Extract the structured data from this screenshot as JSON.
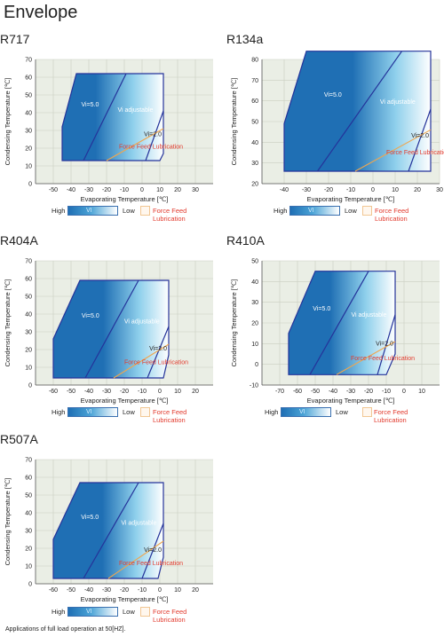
{
  "page": {
    "title": "Envelope",
    "footnote": "Applications of full load operation at 50[HZ]."
  },
  "legend": {
    "high": "High",
    "vi": "VI",
    "low": "Low",
    "ffl": "Force Feed Lubrication"
  },
  "colors": {
    "plot_bg": "#eaeee5",
    "grid": "#c9cfc1",
    "envelope_border": "#24339a",
    "ffl_line": "#f0a64e",
    "label_red": "#e23b2e",
    "vi_dark": "#1f6fb4",
    "vi_light": "#ffffff"
  },
  "chart_data": [
    {
      "type": "area",
      "title": "R717",
      "xlabel": "Evaporating Temperature [℃]",
      "ylabel": "Condensing Temperature [℃]",
      "xlim": [
        -60,
        40
      ],
      "ylim": [
        0,
        70
      ],
      "xticks": [
        -50,
        -40,
        -30,
        -20,
        -10,
        0,
        10,
        20,
        30
      ],
      "yticks": [
        0,
        10,
        20,
        30,
        40,
        50,
        60,
        70
      ],
      "grid": true,
      "envelope": [
        [
          -45,
          13
        ],
        [
          -45,
          32
        ],
        [
          -37,
          62
        ],
        [
          12,
          62
        ],
        [
          12,
          17
        ],
        [
          10,
          13
        ]
      ],
      "vi_line_left": [
        [
          -33,
          13
        ],
        [
          -9,
          62
        ]
      ],
      "vi_line_right": [
        [
          2,
          13
        ],
        [
          12,
          41
        ]
      ],
      "ffl_line": [
        [
          -20,
          13
        ],
        [
          12,
          31
        ]
      ],
      "labels": {
        "vi_fixed": "Vi=5.0",
        "vi_adjustable": "Vi adjustable",
        "vi_low": "Vi=2.0",
        "ffl": "Force Feed Lubrication"
      }
    },
    {
      "type": "area",
      "title": "R134a",
      "xlabel": "Evaporating Temperature [℃]",
      "ylabel": "Condensing Temperature [℃]",
      "xlim": [
        -50,
        30
      ],
      "ylim": [
        20,
        80
      ],
      "xticks": [
        -40,
        -30,
        -20,
        -10,
        0,
        10,
        20,
        30
      ],
      "yticks": [
        20,
        30,
        40,
        50,
        60,
        70,
        80
      ],
      "grid": true,
      "envelope": [
        [
          -40,
          26
        ],
        [
          -40,
          49
        ],
        [
          -30,
          84
        ],
        [
          26,
          84
        ],
        [
          26,
          26
        ]
      ],
      "vi_line_left": [
        [
          -25,
          26
        ],
        [
          13,
          84
        ]
      ],
      "vi_line_right": [
        [
          16,
          26
        ],
        [
          26,
          56
        ]
      ],
      "ffl_line": [
        [
          -8,
          26
        ],
        [
          26,
          46
        ]
      ],
      "labels": {
        "vi_fixed": "Vi=5.0",
        "vi_adjustable": "Vi adjustable",
        "vi_low": "Vi=2.0",
        "ffl": "Force Feed Lubrication"
      }
    },
    {
      "type": "area",
      "title": "R404A",
      "xlabel": "Evaporating Temperature [℃]",
      "ylabel": "Condensing Temperature [℃]",
      "xlim": [
        -70,
        30
      ],
      "ylim": [
        0,
        70
      ],
      "xticks": [
        -60,
        -50,
        -40,
        -30,
        -20,
        -10,
        0,
        10,
        20
      ],
      "yticks": [
        0,
        10,
        20,
        30,
        40,
        50,
        60,
        70
      ],
      "grid": true,
      "envelope": [
        [
          -60,
          4
        ],
        [
          -60,
          26
        ],
        [
          -45,
          59
        ],
        [
          5,
          59
        ],
        [
          5,
          17
        ],
        [
          2,
          4
        ]
      ],
      "vi_line_left": [
        [
          -42,
          4
        ],
        [
          -12,
          59
        ]
      ],
      "vi_line_right": [
        [
          -7,
          4
        ],
        [
          5,
          33
        ]
      ],
      "ffl_line": [
        [
          -26,
          4
        ],
        [
          5,
          23
        ]
      ],
      "labels": {
        "vi_fixed": "Vi=5.0",
        "vi_adjustable": "Vi adjustable",
        "vi_low": "Vi=2.0",
        "ffl": "Force Feed Lubrication"
      }
    },
    {
      "type": "area",
      "title": "R410A",
      "xlabel": "Evaporating Temperature [℃]",
      "ylabel": "Condensing Temperature [℃]",
      "xlim": [
        -80,
        20
      ],
      "ylim": [
        -10,
        50
      ],
      "xticks": [
        -70,
        -60,
        -50,
        -40,
        -30,
        -20,
        -10,
        0,
        10
      ],
      "yticks": [
        -10,
        0,
        10,
        20,
        30,
        40,
        50
      ],
      "grid": true,
      "envelope": [
        [
          -65,
          -5
        ],
        [
          -65,
          15
        ],
        [
          -50,
          45
        ],
        [
          -5,
          45
        ],
        [
          -5,
          5
        ],
        [
          -10,
          -5
        ]
      ],
      "vi_line_left": [
        [
          -53,
          -5
        ],
        [
          -20,
          45
        ]
      ],
      "vi_line_right": [
        [
          -15,
          -5
        ],
        [
          -5,
          24
        ]
      ],
      "ffl_line": [
        [
          -38,
          -5
        ],
        [
          -5,
          11
        ]
      ],
      "labels": {
        "vi_fixed": "Vi=5.0",
        "vi_adjustable": "Vi adjustable",
        "vi_low": "Vi=2.0",
        "ffl": "Force Feed Lubrication"
      }
    },
    {
      "type": "area",
      "title": "R507A",
      "xlabel": "Evaporating Temperature [℃]",
      "ylabel": "Condensing Temperature [℃]",
      "xlim": [
        -70,
        30
      ],
      "ylim": [
        0,
        70
      ],
      "xticks": [
        -60,
        -50,
        -40,
        -30,
        -20,
        -10,
        0,
        10,
        20
      ],
      "yticks": [
        0,
        10,
        20,
        30,
        40,
        50,
        60,
        70
      ],
      "grid": true,
      "envelope": [
        [
          -60,
          3
        ],
        [
          -60,
          25
        ],
        [
          -45,
          57
        ],
        [
          2,
          57
        ],
        [
          2,
          15
        ],
        [
          -1,
          3
        ]
      ],
      "vi_line_left": [
        [
          -43,
          3
        ],
        [
          -12,
          57
        ]
      ],
      "vi_line_right": [
        [
          -10,
          3
        ],
        [
          2,
          34
        ]
      ],
      "ffl_line": [
        [
          -29,
          3
        ],
        [
          2,
          24
        ]
      ],
      "labels": {
        "vi_fixed": "Vi=5.0",
        "vi_adjustable": "Vi adjustable",
        "vi_low": "Vi=2.0",
        "ffl": "Force Feed Lubrication"
      }
    }
  ]
}
